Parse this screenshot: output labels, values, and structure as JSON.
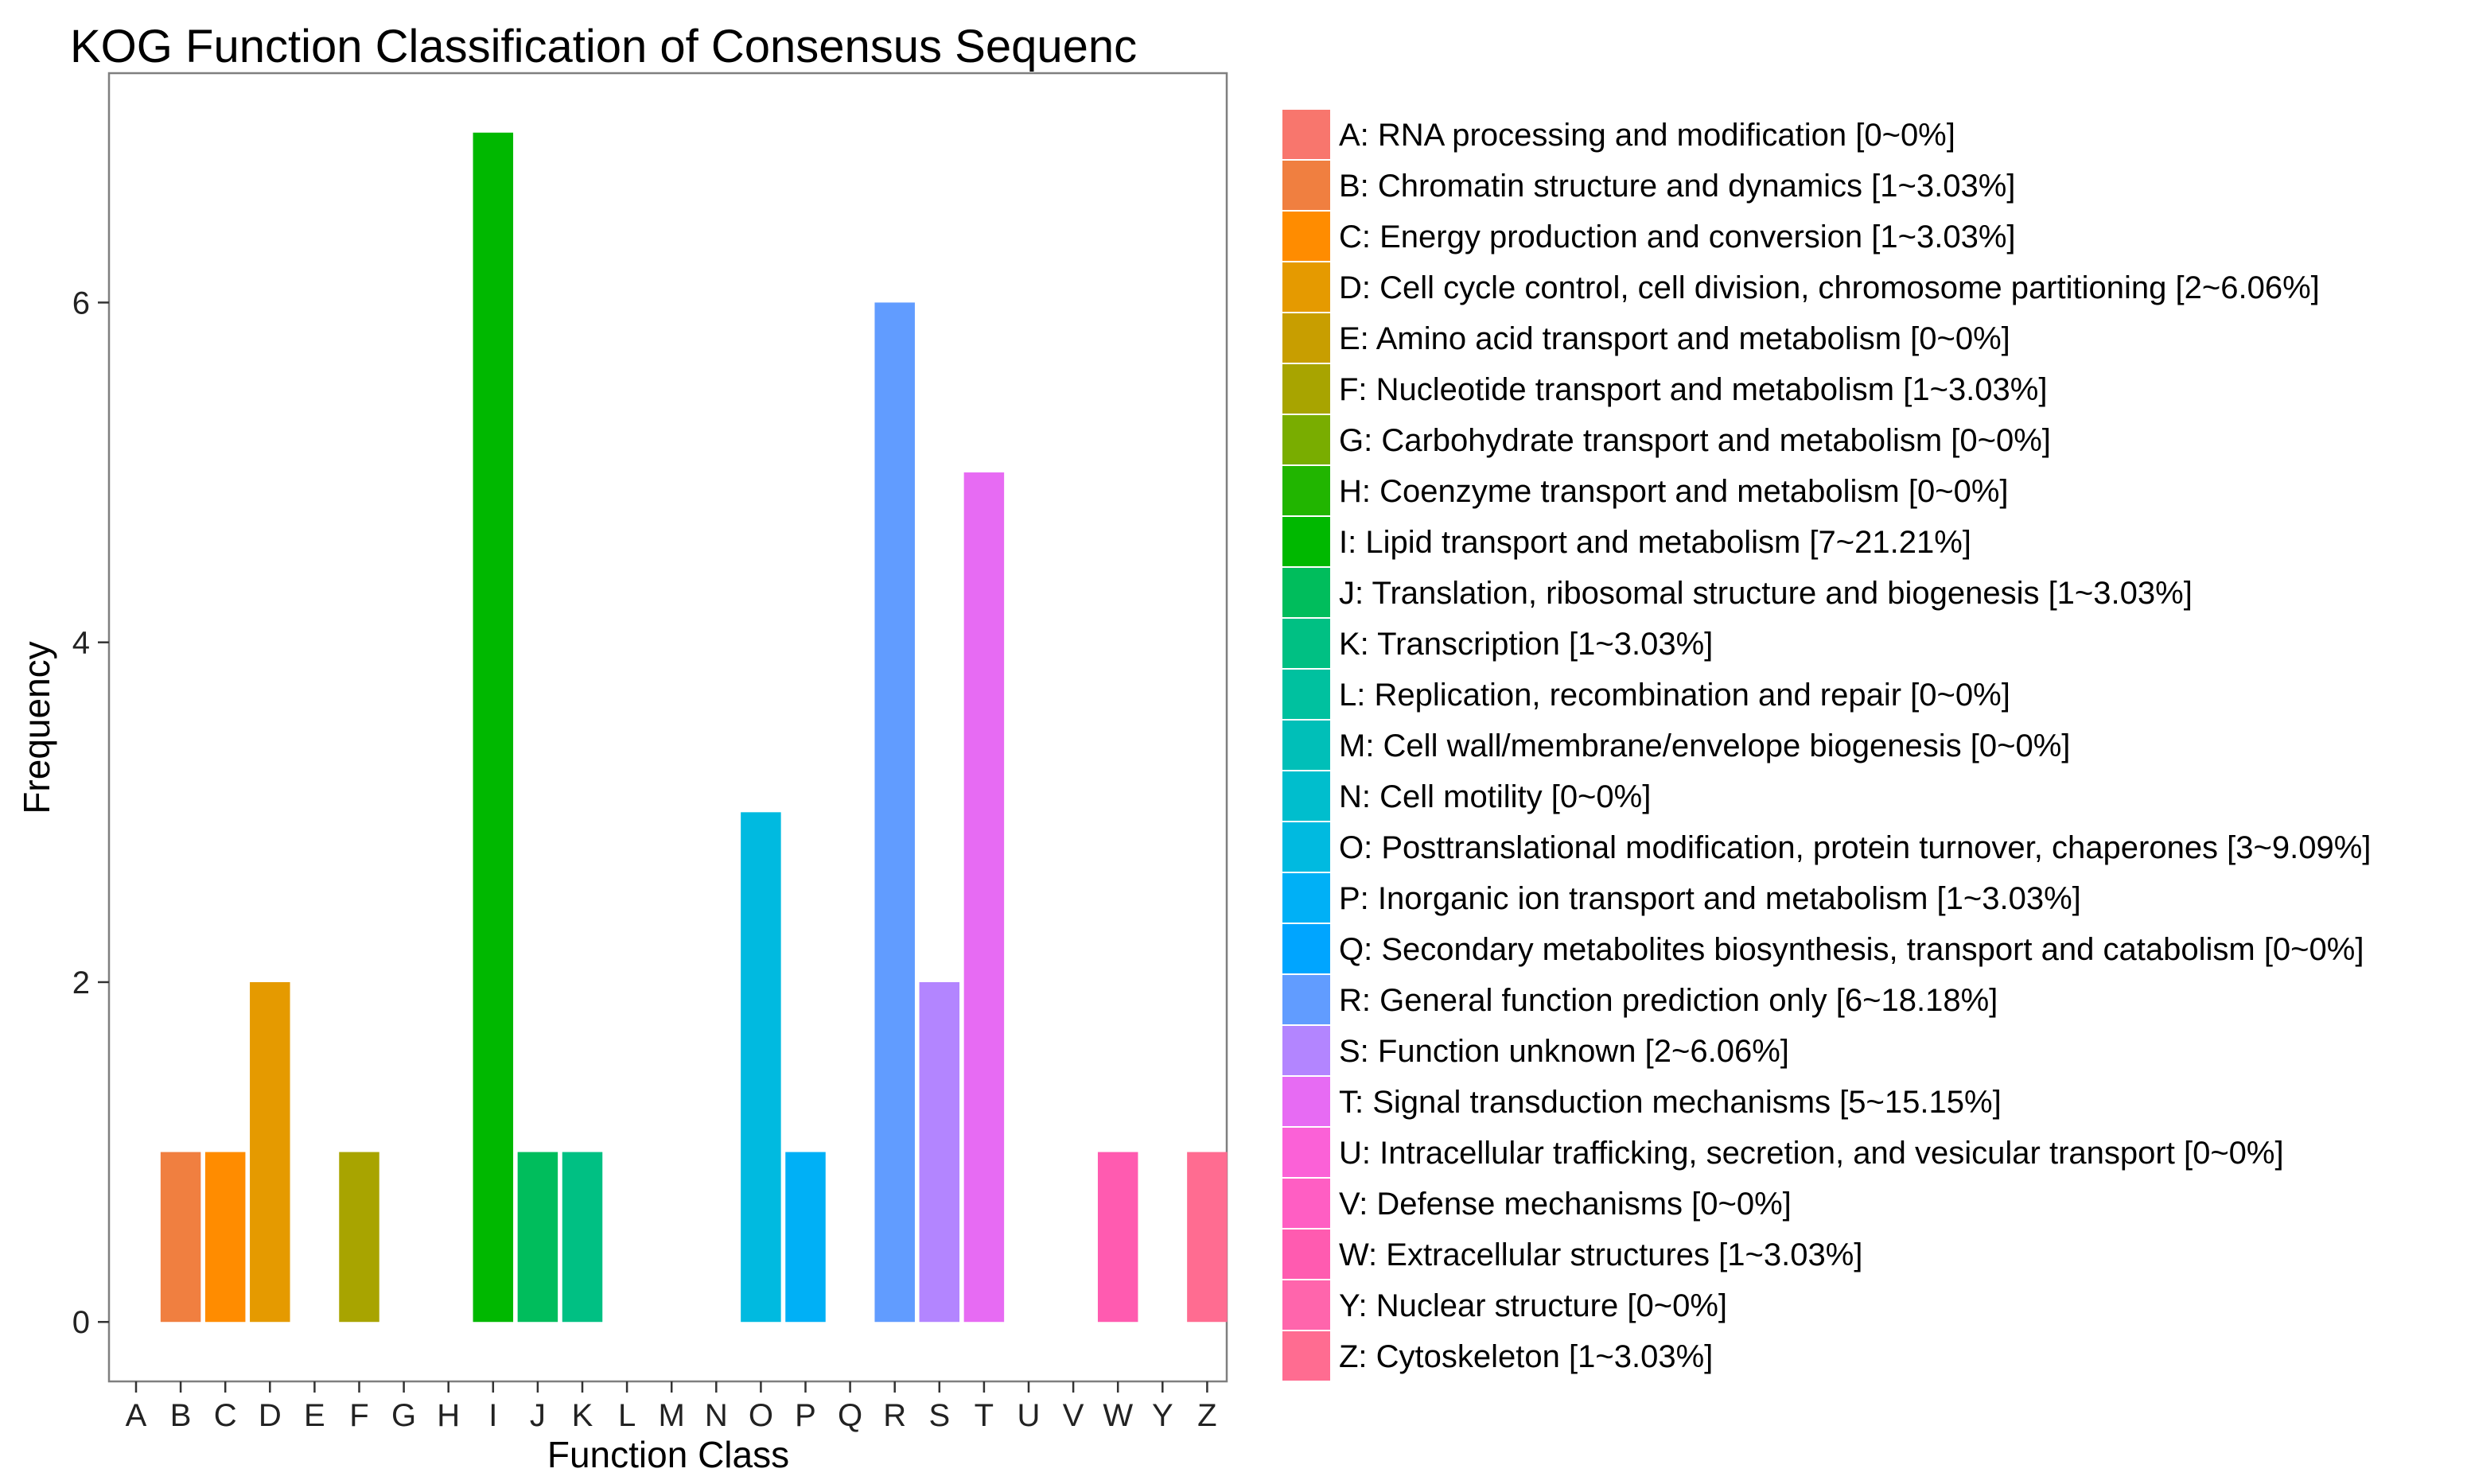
{
  "chart_data": {
    "type": "bar",
    "title": "KOG Function Classification of Consensus Sequenc",
    "xlabel": "Function Class",
    "ylabel": "Frequency",
    "ylim": [
      -0.35,
      7.35
    ],
    "yticks": [
      0,
      2,
      4,
      6
    ],
    "grid": false,
    "legend_position": "right",
    "categories": [
      "A",
      "B",
      "C",
      "D",
      "E",
      "F",
      "G",
      "H",
      "I",
      "J",
      "K",
      "L",
      "M",
      "N",
      "O",
      "P",
      "Q",
      "R",
      "S",
      "T",
      "U",
      "V",
      "W",
      "Y",
      "Z"
    ],
    "values": [
      0,
      1,
      1,
      2,
      0,
      1,
      0,
      0,
      7,
      1,
      1,
      0,
      0,
      0,
      3,
      1,
      0,
      6,
      2,
      5,
      0,
      0,
      1,
      0,
      1
    ],
    "colors": [
      "#F8766D",
      "#F07F40",
      "#FF8C00",
      "#E59A00",
      "#C89E00",
      "#A8A400",
      "#79AD00",
      "#21B500",
      "#00B800",
      "#00BD5C",
      "#00C083",
      "#00C19F",
      "#00BFB8",
      "#00BECD",
      "#00BAE0",
      "#00B0F6",
      "#00A5FF",
      "#619CFF",
      "#B385FF",
      "#E76BF3",
      "#FB61D7",
      "#FF5EC3",
      "#FF5BB0",
      "#FF65AC",
      "#FF6C91"
    ],
    "legend": [
      "A: RNA processing and modification [0~0%]",
      "B: Chromatin structure and dynamics [1~3.03%]",
      "C: Energy production and conversion [1~3.03%]",
      "D: Cell cycle control, cell division, chromosome partitioning [2~6.06%]",
      "E: Amino acid transport and metabolism [0~0%]",
      "F: Nucleotide transport and metabolism [1~3.03%]",
      "G: Carbohydrate transport and metabolism [0~0%]",
      "H: Coenzyme transport and metabolism [0~0%]",
      "I: Lipid transport and metabolism [7~21.21%]",
      "J: Translation, ribosomal structure and biogenesis [1~3.03%]",
      "K: Transcription [1~3.03%]",
      "L: Replication, recombination and repair [0~0%]",
      "M: Cell wall/membrane/envelope biogenesis [0~0%]",
      "N: Cell motility [0~0%]",
      "O: Posttranslational modification, protein turnover, chaperones [3~9.09%]",
      "P: Inorganic ion transport and metabolism [1~3.03%]",
      "Q: Secondary metabolites biosynthesis, transport and catabolism [0~0%]",
      "R: General function prediction only [6~18.18%]",
      "S: Function unknown [2~6.06%]",
      "T: Signal transduction mechanisms [5~15.15%]",
      "U: Intracellular trafficking, secretion, and vesicular transport [0~0%]",
      "V: Defense mechanisms [0~0%]",
      "W: Extracellular structures [1~3.03%]",
      "Y: Nuclear structure [0~0%]",
      "Z: Cytoskeleton [1~3.03%]"
    ]
  }
}
